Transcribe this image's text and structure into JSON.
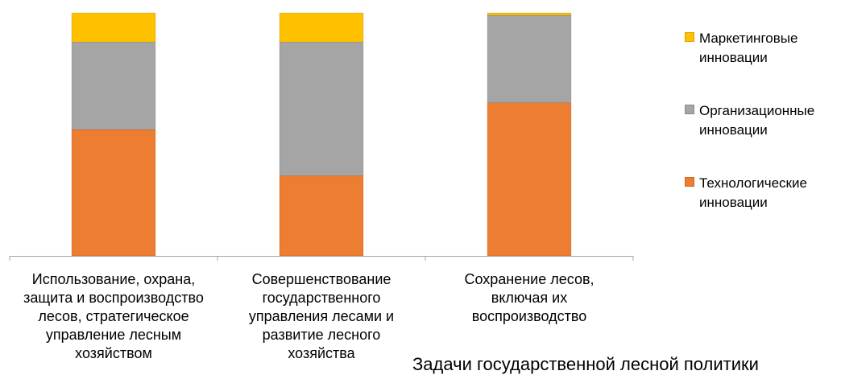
{
  "chart_data": {
    "type": "bar",
    "stacked": true,
    "categories": [
      "Использование, охрана,\nзащита и воспроизводство\nлесов, стратегическое\nуправление лесным\nхозяйством",
      "Совершенствование\nгосударственного\nуправления лесами и\nразвитие лесного\nхозяйства",
      "Сохранение лесов,\nвключая их\nвоспроизводство"
    ],
    "series": [
      {
        "name": "Технологические\nинновации",
        "color": "#ED7D31",
        "values": [
          52,
          33,
          63
        ]
      },
      {
        "name": "Организационные\nинновации",
        "color": "#A5A5A5",
        "values": [
          36,
          55,
          36
        ]
      },
      {
        "name": "Маркетинговые\nинновации",
        "color": "#FFC000",
        "values": [
          12,
          12,
          1
        ]
      }
    ],
    "legend_order": [
      2,
      1,
      0
    ],
    "xlabel": "Задачи государственной лесной политики",
    "ylabel": "",
    "ylim": [
      0,
      100
    ],
    "grid": false,
    "legend": "right",
    "axis_color": "#A6A6A6"
  }
}
